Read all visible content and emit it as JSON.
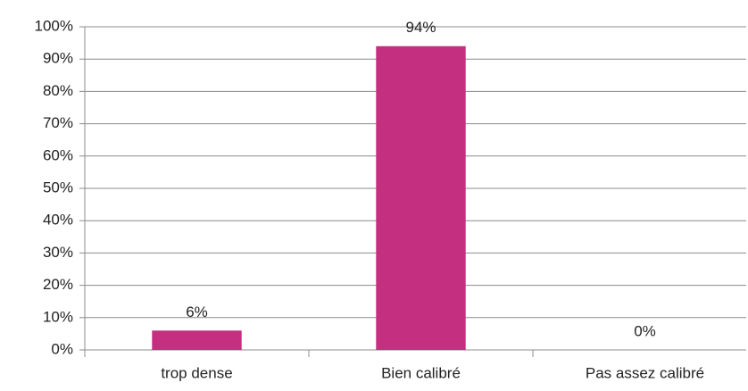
{
  "chart_data": {
    "type": "bar",
    "categories": [
      "trop dense",
      "Bien calibré",
      "Pas assez calibré"
    ],
    "values": [
      6,
      94,
      0
    ],
    "value_labels": [
      "6%",
      "94%",
      "0%"
    ],
    "color": "#c4307f",
    "ylim": [
      0,
      100
    ],
    "yticks": [
      {
        "value": 0,
        "label": "0%"
      },
      {
        "value": 10,
        "label": "10%"
      },
      {
        "value": 20,
        "label": "20%"
      },
      {
        "value": 30,
        "label": "30%"
      },
      {
        "value": 40,
        "label": "40%"
      },
      {
        "value": 50,
        "label": "50%"
      },
      {
        "value": 60,
        "label": "60%"
      },
      {
        "value": 70,
        "label": "70%"
      },
      {
        "value": 80,
        "label": "80%"
      },
      {
        "value": 90,
        "label": "90%"
      },
      {
        "value": 100,
        "label": "100%"
      }
    ],
    "grid": true
  }
}
